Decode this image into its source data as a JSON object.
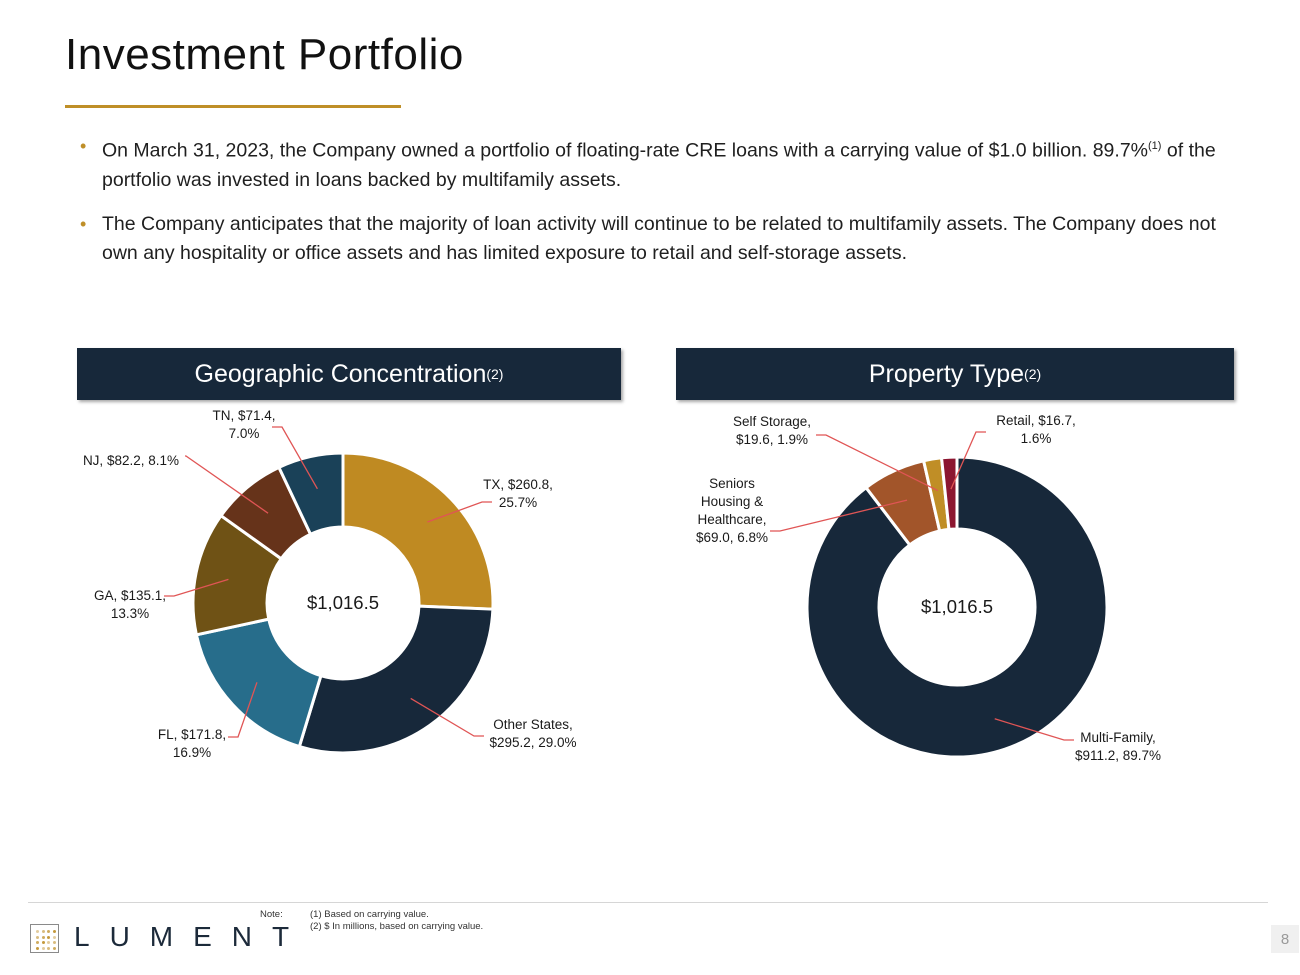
{
  "title": "Investment Portfolio",
  "bullets": [
    {
      "pre": "On March 31, 2023, the Company owned a portfolio of floating-rate CRE loans with a carrying value of $1.0 billion. 89.7%",
      "sup": "(1)",
      "post": " of the portfolio was invested in loans backed by multifamily assets."
    },
    {
      "pre": "The Company anticipates that the majority of loan activity will continue to be related to multifamily assets. The Company does not own any hospitality or office assets and has limited exposure to retail and self-storage assets.",
      "sup": "",
      "post": ""
    }
  ],
  "bullet_marker": "•",
  "colors": {
    "accent": "#bf8f28",
    "header_bg": "#17283a",
    "leader": "#e05555"
  },
  "chart_data": [
    {
      "type": "pie",
      "title": "Geographic Concentration",
      "title_sup": "(2)",
      "center_label": "$1,016.5",
      "total": 1016.5,
      "slices": [
        {
          "name": "TX",
          "value": 260.8,
          "pct": 25.7,
          "label": [
            "TX, $260.8,",
            "25.7%"
          ],
          "color": "#bf8a22"
        },
        {
          "name": "Other States",
          "value": 295.2,
          "pct": 29.0,
          "label": [
            "Other States,",
            "$295.2, 29.0%"
          ],
          "color": "#17283a"
        },
        {
          "name": "FL",
          "value": 171.8,
          "pct": 16.9,
          "label": [
            "FL, $171.8,",
            "16.9%"
          ],
          "color": "#276d8b"
        },
        {
          "name": "GA",
          "value": 135.1,
          "pct": 13.3,
          "label": [
            "GA, $135.1,",
            "13.3%"
          ],
          "color": "#6f5215"
        },
        {
          "name": "NJ",
          "value": 82.2,
          "pct": 8.1,
          "label": [
            "NJ, $82.2, 8.1%"
          ],
          "color": "#66331a"
        },
        {
          "name": "TN",
          "value": 71.4,
          "pct": 7.0,
          "label": [
            "TN, $71.4,",
            "7.0%"
          ],
          "color": "#1a4158"
        }
      ]
    },
    {
      "type": "pie",
      "title": "Property Type",
      "title_sup": "(2)",
      "center_label": "$1,016.5",
      "total": 1016.5,
      "slices": [
        {
          "name": "Multi-Family",
          "value": 911.2,
          "pct": 89.7,
          "label": [
            "Multi-Family,",
            "$911.2, 89.7%"
          ],
          "color": "#17283a"
        },
        {
          "name": "Seniors Housing & Healthcare",
          "value": 69.0,
          "pct": 6.8,
          "label": [
            "Seniors",
            "Housing &",
            "Healthcare,",
            "$69.0, 6.8%"
          ],
          "color": "#a2552a"
        },
        {
          "name": "Self Storage",
          "value": 19.6,
          "pct": 1.9,
          "label": [
            "Self Storage,",
            "$19.6, 1.9%"
          ],
          "color": "#c08e26"
        },
        {
          "name": "Retail",
          "value": 16.7,
          "pct": 1.6,
          "label": [
            "Retail, $16.7,",
            "1.6%"
          ],
          "color": "#8c1630"
        }
      ]
    }
  ],
  "footer": {
    "logo_text": "LUMENT",
    "note_label": "Note:",
    "notes": [
      "(1) Based on carrying value.",
      "(2) $ In millions, based on carrying value."
    ],
    "page_number": "8"
  }
}
